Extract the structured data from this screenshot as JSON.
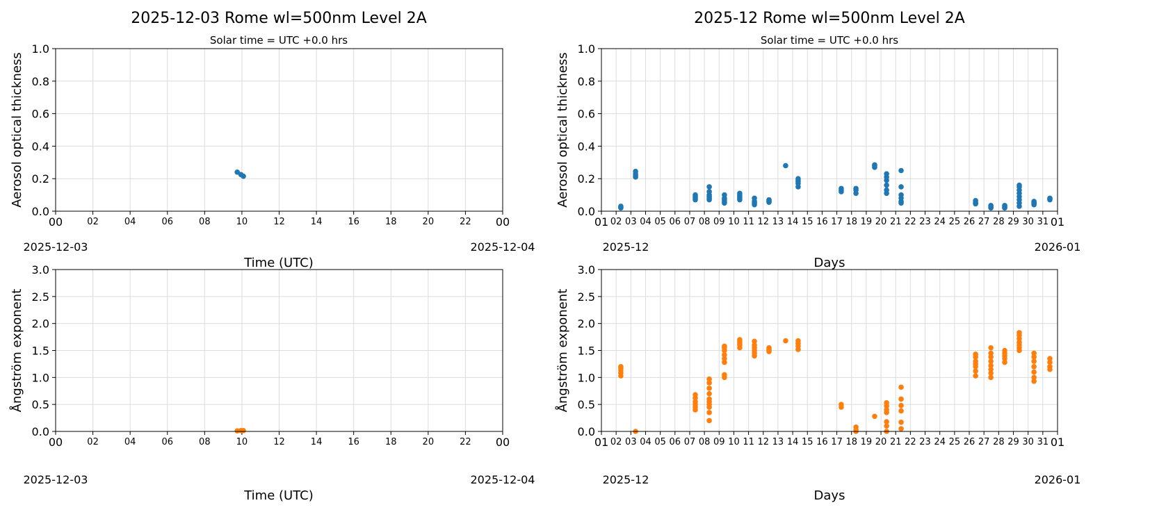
{
  "colors": {
    "aot": "#1f77b4",
    "angstrom": "#ff7f0e",
    "grid": "#dcdcdc"
  },
  "panels": {
    "daily": {
      "title": "2025-12-03  Rome  wl=500nm  Level 2A",
      "subtitle": "Solar time = UTC +0.0 hrs",
      "xlabel": "Time (UTC)",
      "xstart_label": "2025-12-03",
      "xend_label": "2025-12-04"
    },
    "monthly": {
      "title": "2025-12  Rome  wl=500nm  Level 2A",
      "subtitle": "Solar time = UTC +0.0 hrs",
      "xlabel": "Days",
      "xstart_label": "2025-12",
      "xend_label": "2026-01"
    }
  },
  "chart_data": [
    {
      "type": "scatter",
      "name": "daily-aot",
      "title": "2025-12-03  Rome  wl=500nm  Level 2A",
      "xlabel": "Time (UTC)",
      "ylabel": "Aerosol optical thickness",
      "xlim": [
        0,
        24
      ],
      "ylim": [
        0,
        1.0
      ],
      "xticks": [
        "00",
        "02",
        "04",
        "06",
        "08",
        "10",
        "12",
        "14",
        "16",
        "18",
        "20",
        "22",
        "00"
      ],
      "yticks": [
        "0.0",
        "0.2",
        "0.4",
        "0.6",
        "0.8",
        "1.0"
      ],
      "clusters": [
        {
          "x": 9.75,
          "values": [
            0.24
          ]
        },
        {
          "x": 9.95,
          "values": [
            0.225
          ]
        },
        {
          "x": 10.08,
          "values": [
            0.215
          ]
        }
      ]
    },
    {
      "type": "scatter",
      "name": "monthly-aot",
      "title": "2025-12  Rome  wl=500nm  Level 2A",
      "xlabel": "Days",
      "ylabel": "Aerosol optical thickness",
      "xlim": [
        1,
        32
      ],
      "ylim": [
        0,
        1.0
      ],
      "xticks": [
        "01",
        "02",
        "03",
        "04",
        "05",
        "06",
        "07",
        "08",
        "09",
        "10",
        "11",
        "12",
        "13",
        "14",
        "15",
        "16",
        "17",
        "18",
        "19",
        "20",
        "21",
        "22",
        "23",
        "24",
        "25",
        "26",
        "27",
        "28",
        "29",
        "30",
        "31",
        "01"
      ],
      "yticks": [
        "0.0",
        "0.2",
        "0.4",
        "0.6",
        "0.8",
        "1.0"
      ],
      "clusters": [
        {
          "x": 2.32,
          "values": [
            0.02,
            0.025,
            0.03
          ]
        },
        {
          "x": 3.32,
          "values": [
            0.21,
            0.22,
            0.23,
            0.245
          ]
        },
        {
          "x": 7.38,
          "values": [
            0.07,
            0.08,
            0.09,
            0.1
          ]
        },
        {
          "x": 8.33,
          "values": [
            0.07,
            0.08,
            0.09,
            0.1,
            0.12,
            0.15
          ]
        },
        {
          "x": 9.36,
          "values": [
            0.05,
            0.06,
            0.07,
            0.08,
            0.1
          ]
        },
        {
          "x": 10.4,
          "values": [
            0.07,
            0.08,
            0.09,
            0.1,
            0.11
          ]
        },
        {
          "x": 11.4,
          "values": [
            0.04,
            0.05,
            0.06,
            0.08
          ]
        },
        {
          "x": 12.39,
          "values": [
            0.055,
            0.06,
            0.065,
            0.07
          ]
        },
        {
          "x": 13.52,
          "values": [
            0.28
          ]
        },
        {
          "x": 14.37,
          "values": [
            0.15,
            0.17,
            0.18,
            0.19,
            0.2
          ]
        },
        {
          "x": 17.3,
          "values": [
            0.12,
            0.13,
            0.14
          ]
        },
        {
          "x": 18.3,
          "values": [
            0.11,
            0.13,
            0.14
          ]
        },
        {
          "x": 19.57,
          "values": [
            0.27,
            0.28,
            0.285
          ]
        },
        {
          "x": 20.38,
          "values": [
            0.11,
            0.13,
            0.16,
            0.19,
            0.21,
            0.23
          ]
        },
        {
          "x": 21.37,
          "values": [
            0.05,
            0.06,
            0.08,
            0.1,
            0.15,
            0.25
          ]
        },
        {
          "x": 26.43,
          "values": [
            0.045,
            0.05,
            0.055,
            0.065
          ]
        },
        {
          "x": 27.47,
          "values": [
            0.02,
            0.025,
            0.03,
            0.035
          ]
        },
        {
          "x": 28.41,
          "values": [
            0.02,
            0.025,
            0.03,
            0.035
          ]
        },
        {
          "x": 29.4,
          "values": [
            0.03,
            0.05,
            0.07,
            0.09,
            0.11,
            0.13,
            0.15,
            0.16
          ]
        },
        {
          "x": 30.4,
          "values": [
            0.04,
            0.045,
            0.05,
            0.055,
            0.06
          ]
        },
        {
          "x": 31.48,
          "values": [
            0.07,
            0.075,
            0.08
          ]
        }
      ]
    },
    {
      "type": "scatter",
      "name": "daily-angstrom",
      "xlabel": "Time (UTC)",
      "ylabel": "Ångström exponent",
      "xlim": [
        0,
        24
      ],
      "ylim": [
        0,
        3.0
      ],
      "xticks": [
        "00",
        "02",
        "04",
        "06",
        "08",
        "10",
        "12",
        "14",
        "16",
        "18",
        "20",
        "22",
        "00"
      ],
      "yticks": [
        "0.0",
        "0.5",
        "1.0",
        "1.5",
        "2.0",
        "2.5",
        "3.0"
      ],
      "clusters": [
        {
          "x": 9.75,
          "values": [
            0.01
          ]
        },
        {
          "x": 9.95,
          "values": [
            0.015
          ]
        },
        {
          "x": 10.08,
          "values": [
            0.015
          ]
        }
      ]
    },
    {
      "type": "scatter",
      "name": "monthly-angstrom",
      "xlabel": "Days",
      "ylabel": "Ångström exponent",
      "xlim": [
        1,
        32
      ],
      "ylim": [
        0,
        3.0
      ],
      "xticks": [
        "01",
        "02",
        "03",
        "04",
        "05",
        "06",
        "07",
        "08",
        "09",
        "10",
        "11",
        "12",
        "13",
        "14",
        "15",
        "16",
        "17",
        "18",
        "19",
        "20",
        "21",
        "22",
        "23",
        "24",
        "25",
        "26",
        "27",
        "28",
        "29",
        "30",
        "31",
        "01"
      ],
      "yticks": [
        "0.0",
        "0.5",
        "1.0",
        "1.5",
        "2.0",
        "2.5",
        "3.0"
      ],
      "clusters": [
        {
          "x": 2.32,
          "values": [
            1.03,
            1.08,
            1.13,
            1.17,
            1.2
          ]
        },
        {
          "x": 3.32,
          "values": [
            0.0
          ]
        },
        {
          "x": 7.38,
          "values": [
            0.4,
            0.45,
            0.5,
            0.55,
            0.62,
            0.68
          ]
        },
        {
          "x": 8.33,
          "values": [
            0.2,
            0.35,
            0.45,
            0.5,
            0.55,
            0.6,
            0.7,
            0.8,
            0.9,
            0.97
          ]
        },
        {
          "x": 9.36,
          "values": [
            1.0,
            1.05,
            1.28,
            1.35,
            1.42,
            1.5,
            1.55,
            1.58
          ]
        },
        {
          "x": 10.4,
          "values": [
            1.55,
            1.6,
            1.63,
            1.67,
            1.7
          ]
        },
        {
          "x": 11.4,
          "values": [
            1.4,
            1.45,
            1.5,
            1.55,
            1.6,
            1.67
          ]
        },
        {
          "x": 12.39,
          "values": [
            1.48,
            1.5,
            1.52,
            1.55
          ]
        },
        {
          "x": 13.52,
          "values": [
            1.68
          ]
        },
        {
          "x": 14.37,
          "values": [
            1.52,
            1.58,
            1.63,
            1.68
          ]
        },
        {
          "x": 17.3,
          "values": [
            0.45,
            0.5
          ]
        },
        {
          "x": 18.3,
          "values": [
            0.0,
            0.03,
            0.08
          ]
        },
        {
          "x": 19.57,
          "values": [
            0.28
          ]
        },
        {
          "x": 20.38,
          "values": [
            0.0,
            0.1,
            0.18,
            0.35,
            0.4,
            0.47,
            0.53
          ]
        },
        {
          "x": 21.37,
          "values": [
            0.05,
            0.17,
            0.38,
            0.48,
            0.6,
            0.82
          ]
        },
        {
          "x": 26.43,
          "values": [
            1.03,
            1.12,
            1.2,
            1.25,
            1.3,
            1.38,
            1.43
          ]
        },
        {
          "x": 27.47,
          "values": [
            1.0,
            1.08,
            1.15,
            1.22,
            1.3,
            1.38,
            1.45,
            1.55
          ]
        },
        {
          "x": 28.41,
          "values": [
            1.28,
            1.35,
            1.4,
            1.45,
            1.5
          ]
        },
        {
          "x": 29.4,
          "values": [
            1.5,
            1.55,
            1.6,
            1.65,
            1.72,
            1.78,
            1.83
          ]
        },
        {
          "x": 30.4,
          "values": [
            0.93,
            1.0,
            1.1,
            1.2,
            1.3,
            1.38,
            1.45
          ]
        },
        {
          "x": 31.48,
          "values": [
            1.15,
            1.2,
            1.28,
            1.35
          ]
        }
      ]
    }
  ]
}
